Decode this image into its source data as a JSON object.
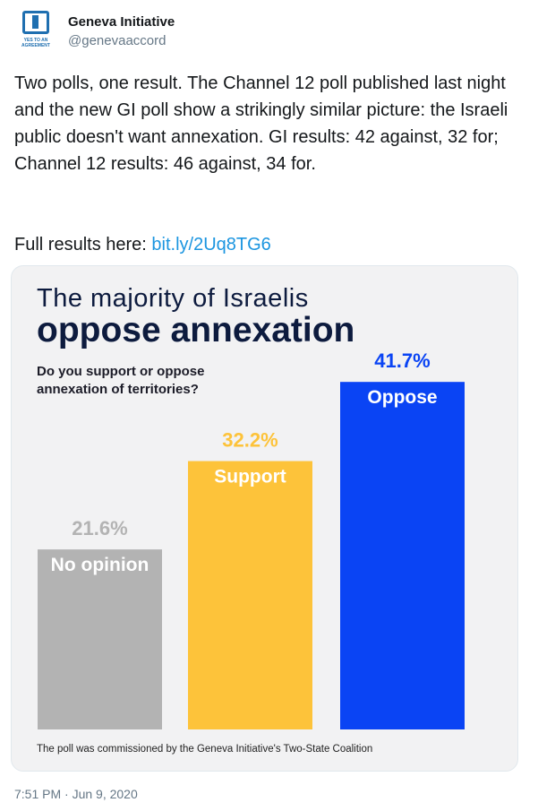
{
  "author": {
    "name": "Geneva Initiative",
    "handle": "@genevaaccord",
    "avatar_text": "YES TO AN AGREEMENT"
  },
  "tweet": {
    "text": "Two polls, one result. The Channel 12 poll published last night and the new GI poll show a strikingly similar picture: the Israeli public doesn't want annexation. GI results: 42 against, 32 for; Channel 12 results: 46 against, 34 for.",
    "link_prefix": "Full results here: ",
    "link_text": "bit.ly/2Uq8TG6",
    "timestamp": "7:51 PM · Jun 9, 2020"
  },
  "chart_data": {
    "type": "bar",
    "title_line1": "The majority of Israelis",
    "title_line2": "oppose annexation",
    "question": "Do you support or oppose annexation of territories?",
    "categories": [
      "No opinion",
      "Support",
      "Oppose"
    ],
    "values": [
      21.6,
      32.2,
      41.7
    ],
    "value_labels": [
      "21.6%",
      "32.2%",
      "41.7%"
    ],
    "colors": [
      "#b3b3b3",
      "#fdc33a",
      "#0a44f4"
    ],
    "label_colors": [
      "#b3b3b3",
      "#fdc33a",
      "#0a44f4"
    ],
    "footnote": "The poll was commissioned by the Geneva Initiative's Two-State Coalition"
  }
}
